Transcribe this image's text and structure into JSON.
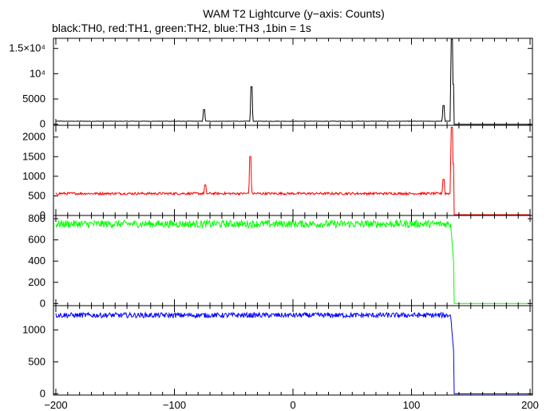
{
  "title": "WAM T2 Lightcurve (y−axis: Counts)",
  "subtitle": "black:TH0, red:TH1, green:TH2, blue:TH3 ,1bin = 1s",
  "chart_data": [
    {
      "type": "line",
      "name": "TH0",
      "color": "#000000",
      "xlim": [
        -202,
        202
      ],
      "ylim": [
        -200,
        17000
      ],
      "ytick_values": [
        0,
        5000,
        10000,
        15000
      ],
      "ytick_labels": [
        "0",
        "5000",
        "10⁴",
        "1.5×10⁴"
      ],
      "baseline": 600,
      "noise": 40,
      "spikes": [
        {
          "x": -75,
          "value": 2900
        },
        {
          "x": -35,
          "value": 7400
        },
        {
          "x": 127,
          "value": 3700
        },
        {
          "x": 134,
          "value": 16800
        }
      ],
      "drop_x": 136,
      "after_drop_value": 0
    },
    {
      "type": "line",
      "name": "TH1",
      "color": "#ff0000",
      "xlim": [
        -202,
        202
      ],
      "ylim": [
        0,
        2300
      ],
      "ytick_values": [
        0,
        500,
        1000,
        1500,
        2000
      ],
      "ytick_labels": [
        "0",
        "500",
        "1000",
        "1500",
        "2000"
      ],
      "baseline": 560,
      "noise": 30,
      "spikes": [
        {
          "x": -74,
          "value": 780
        },
        {
          "x": -36,
          "value": 1500
        },
        {
          "x": 127,
          "value": 920
        },
        {
          "x": 134,
          "value": 2250
        }
      ],
      "drop_x": 136,
      "after_drop_value": 20
    },
    {
      "type": "line",
      "name": "TH2",
      "color": "#00ff00",
      "xlim": [
        -202,
        202
      ],
      "ylim": [
        -20,
        830
      ],
      "ytick_values": [
        0,
        200,
        400,
        600,
        800
      ],
      "ytick_labels": [
        "0",
        "200",
        "400",
        "600",
        "800"
      ],
      "baseline": 750,
      "noise": 35,
      "spikes": [],
      "drop_x": 136,
      "after_drop_value": 0
    },
    {
      "type": "line",
      "name": "TH3",
      "color": "#0000ff",
      "xlim": [
        -202,
        202
      ],
      "ylim": [
        -20,
        1380
      ],
      "ytick_values": [
        0,
        500,
        1000
      ],
      "ytick_labels": [
        "0",
        "500",
        "1000"
      ],
      "baseline": 1230,
      "noise": 40,
      "spikes": [],
      "drop_x": 136,
      "after_drop_value": 0
    }
  ],
  "x_axis": {
    "tick_values": [
      -200,
      -100,
      0,
      100,
      200
    ],
    "tick_labels": [
      "−200",
      "−100",
      "0",
      "100",
      "200"
    ]
  }
}
